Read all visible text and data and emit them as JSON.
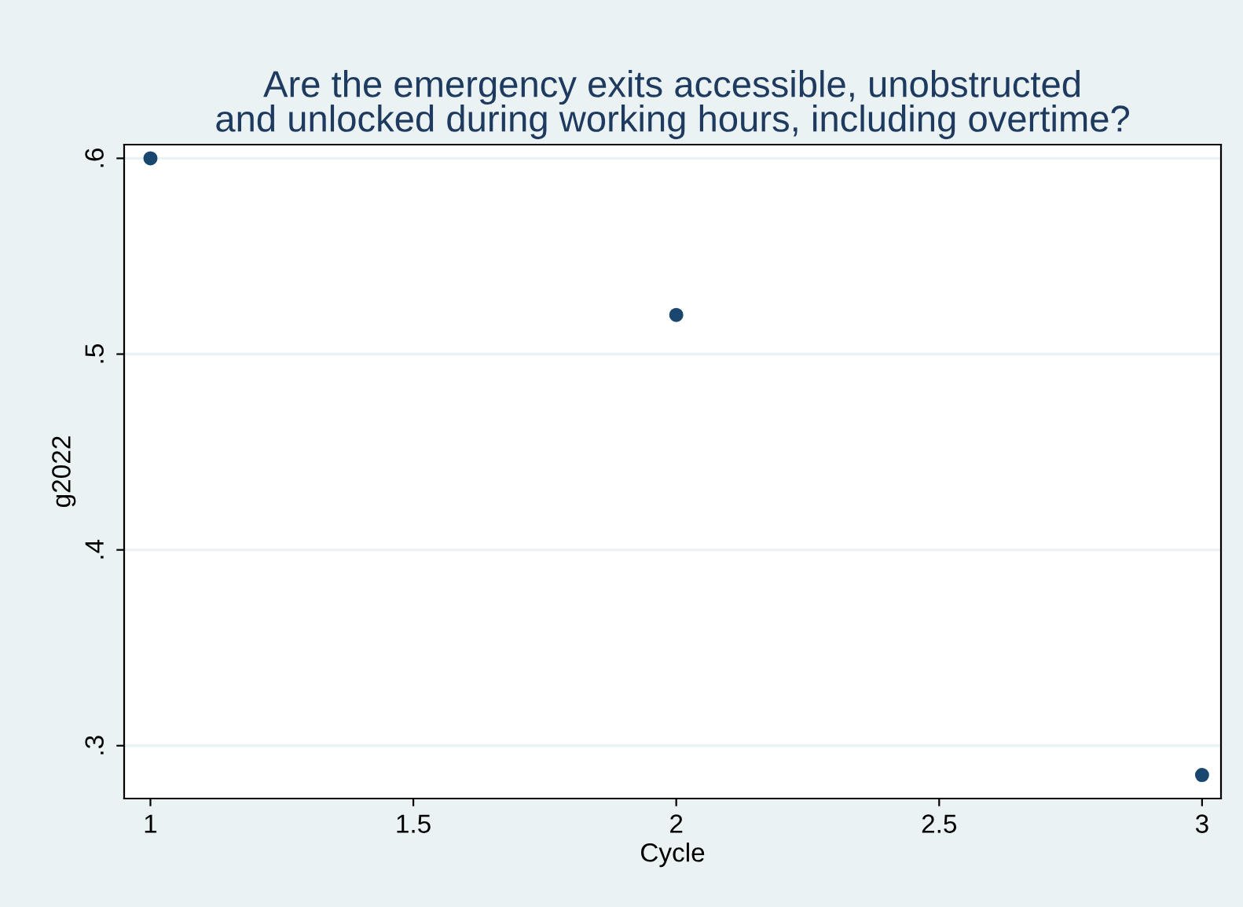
{
  "chart_data": {
    "type": "scatter",
    "title": "Are the emergency exits accessible, unobstructed\nand unlocked during working hours, including overtime?",
    "xlabel": "Cycle",
    "ylabel": "g2022",
    "x": [
      1,
      2,
      3
    ],
    "series": [
      {
        "color": "#1a476f",
        "values": [
          0.6,
          0.52,
          0.285
        ]
      }
    ],
    "xlim": [
      0.95,
      3.036
    ],
    "ylim": [
      0.273,
      0.607
    ],
    "xticks": [
      1,
      1.5,
      2,
      2.5,
      3
    ],
    "yticks": [
      {
        "value": 0.3,
        "label": ".3"
      },
      {
        "value": 0.4,
        "label": ".4"
      },
      {
        "value": 0.5,
        "label": ".5"
      },
      {
        "value": 0.6,
        "label": ".6"
      }
    ],
    "grid": "y",
    "marker": "circle",
    "legend": false
  }
}
